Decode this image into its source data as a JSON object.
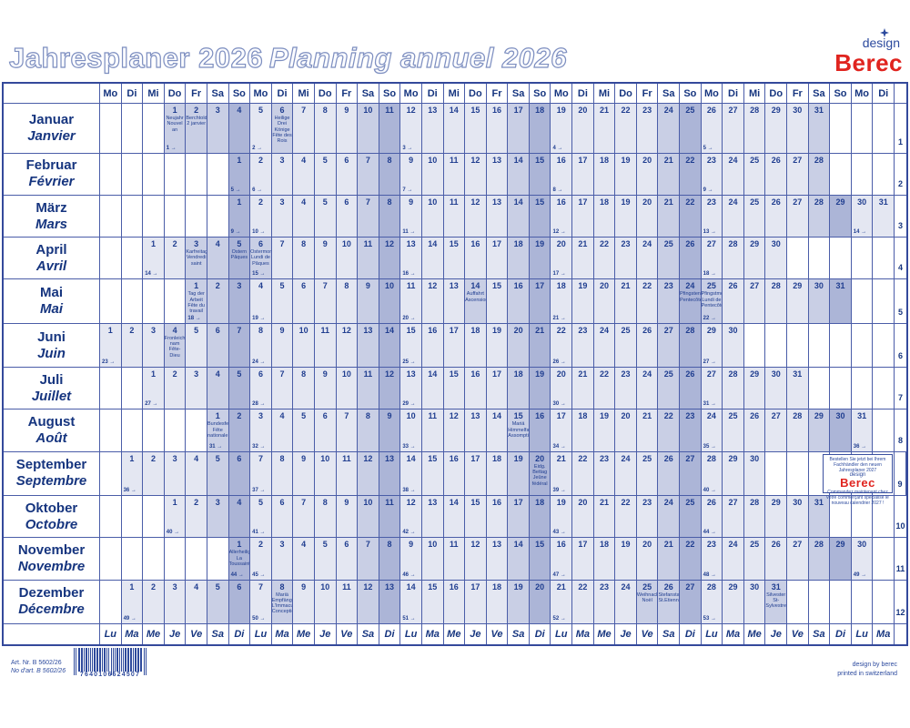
{
  "titles": {
    "de": "Jahresplaner 2026",
    "fr": "Planning annuel 2026"
  },
  "logo": {
    "design": "design",
    "berec": "Berec"
  },
  "weekdays_de": [
    "Mo",
    "Di",
    "Mi",
    "Do",
    "Fr",
    "Sa",
    "So"
  ],
  "weekdays_fr": [
    "Lu",
    "Ma",
    "Me",
    "Je",
    "Ve",
    "Sa",
    "Di"
  ],
  "num_columns": 37,
  "months": [
    {
      "n": 1,
      "de": "Januar",
      "fr": "Janvier",
      "start": 4,
      "days": 31,
      "holidays": {
        "1": [
          "Neujahr",
          "Nouvel an"
        ],
        "2": [
          "Berchtoldstag",
          "2 janvier"
        ],
        "6": [
          "Heilige",
          "Drei Könige",
          "Fête des Rois"
        ]
      },
      "weeks": {
        "1": "1",
        "5": "2",
        "12": "3",
        "19": "4",
        "26": "5"
      }
    },
    {
      "n": 2,
      "de": "Februar",
      "fr": "Février",
      "start": 7,
      "days": 28,
      "holidays": {},
      "weeks": {
        "1": "5",
        "2": "6",
        "9": "7",
        "16": "8",
        "23": "9"
      }
    },
    {
      "n": 3,
      "de": "März",
      "fr": "Mars",
      "start": 7,
      "days": 31,
      "holidays": {},
      "weeks": {
        "1": "9",
        "2": "10",
        "9": "11",
        "16": "12",
        "23": "13",
        "30": "14"
      }
    },
    {
      "n": 4,
      "de": "April",
      "fr": "Avril",
      "start": 3,
      "days": 30,
      "holidays": {
        "3": [
          "Karfreitag",
          "Vendredi saint"
        ],
        "5": [
          "Ostern",
          "Pâques"
        ],
        "6": [
          "Ostermontag",
          "Lundi de",
          "Pâques"
        ]
      },
      "weeks": {
        "1": "14",
        "6": "15",
        "13": "16",
        "20": "17",
        "27": "18"
      }
    },
    {
      "n": 5,
      "de": "Mai",
      "fr": "Mai",
      "start": 5,
      "days": 31,
      "holidays": {
        "1": [
          "Tag der Arbeit",
          "Fête du travail"
        ],
        "14": [
          "Auffahrt",
          "Ascension"
        ],
        "24": [
          "Pfingsten",
          "Pentecôte"
        ],
        "25": [
          "Pfingstmontag",
          "Lundi de",
          "Pentecôte"
        ]
      },
      "weeks": {
        "1": "18",
        "4": "19",
        "11": "20",
        "18": "21",
        "25": "22"
      }
    },
    {
      "n": 6,
      "de": "Juni",
      "fr": "Juin",
      "start": 1,
      "days": 30,
      "holidays": {
        "4": [
          "Fronleich-",
          "nam",
          "Fête-Dieu"
        ]
      },
      "weeks": {
        "1": "23",
        "8": "24",
        "15": "25",
        "22": "26",
        "29": "27"
      }
    },
    {
      "n": 7,
      "de": "Juli",
      "fr": "Juillet",
      "start": 3,
      "days": 31,
      "holidays": {},
      "weeks": {
        "1": "27",
        "6": "28",
        "13": "29",
        "20": "30",
        "27": "31"
      }
    },
    {
      "n": 8,
      "de": "August",
      "fr": "Août",
      "start": 6,
      "days": 31,
      "holidays": {
        "1": [
          "Bundesfeier",
          "Fête nationale"
        ],
        "15": [
          "Mariä",
          "Himmelfahrt",
          "Assomption"
        ]
      },
      "weeks": {
        "1": "31",
        "3": "32",
        "10": "33",
        "17": "34",
        "24": "35",
        "31": "36"
      }
    },
    {
      "n": 9,
      "de": "September",
      "fr": "Septembre",
      "start": 2,
      "days": 30,
      "holidays": {
        "20": [
          "Eidg. Bettag",
          "Jeûne fédéral"
        ]
      },
      "weeks": {
        "1": "36",
        "7": "37",
        "14": "38",
        "21": "39",
        "28": "40"
      }
    },
    {
      "n": 10,
      "de": "Oktober",
      "fr": "Octobre",
      "start": 4,
      "days": 31,
      "holidays": {},
      "weeks": {
        "1": "40",
        "5": "41",
        "12": "42",
        "19": "43",
        "26": "44"
      }
    },
    {
      "n": 11,
      "de": "November",
      "fr": "Novembre",
      "start": 7,
      "days": 30,
      "holidays": {
        "1": [
          "Allerheiligen",
          "La Toussaint"
        ]
      },
      "weeks": {
        "1": "44",
        "2": "45",
        "9": "46",
        "16": "47",
        "23": "48",
        "30": "49"
      }
    },
    {
      "n": 12,
      "de": "Dezember",
      "fr": "Décembre",
      "start": 2,
      "days": 31,
      "holidays": {
        "8": [
          "Mariä",
          "Empfängnis",
          "L'Immaculée",
          "Conception"
        ],
        "25": [
          "Weihnachten",
          "Noël"
        ],
        "26": [
          "Stefanstag",
          "St.Etienne"
        ],
        "31": [
          "Silvester",
          "St-Sylvestre"
        ]
      },
      "weeks": {
        "1": "49",
        "7": "50",
        "14": "51",
        "21": "52",
        "28": "53"
      }
    }
  ],
  "promo": {
    "month": 9,
    "de": "Bestellen Sie jetzt bei Ihrem Fachhändler den neuen Jahresplaner 2027",
    "logo_design": "design",
    "logo_berec": "Berec",
    "fr": "Commandez maintenant chez votre commerçant spécialisé le nouveau calendrier 2027 !"
  },
  "footer": {
    "art_no_de": "Art. Nr. B 5602/26",
    "art_no_fr": "No d'art. B 5602/26",
    "barcode_digits": "7640106624507",
    "credit_line1": "design by berec",
    "credit_line2": "printed in switzerland"
  },
  "colors": {
    "line": "#4a5da8",
    "outer_border": "#34499b",
    "text": "#16357f",
    "weekday_bg": "#e4e7f2",
    "saturday_bg": "#c9cfe5",
    "sunday_bg": "#acb5d7",
    "brand_red": "#e0241f",
    "brand_blue": "#2c4a9e",
    "title_outline": "#7e8fc0"
  }
}
